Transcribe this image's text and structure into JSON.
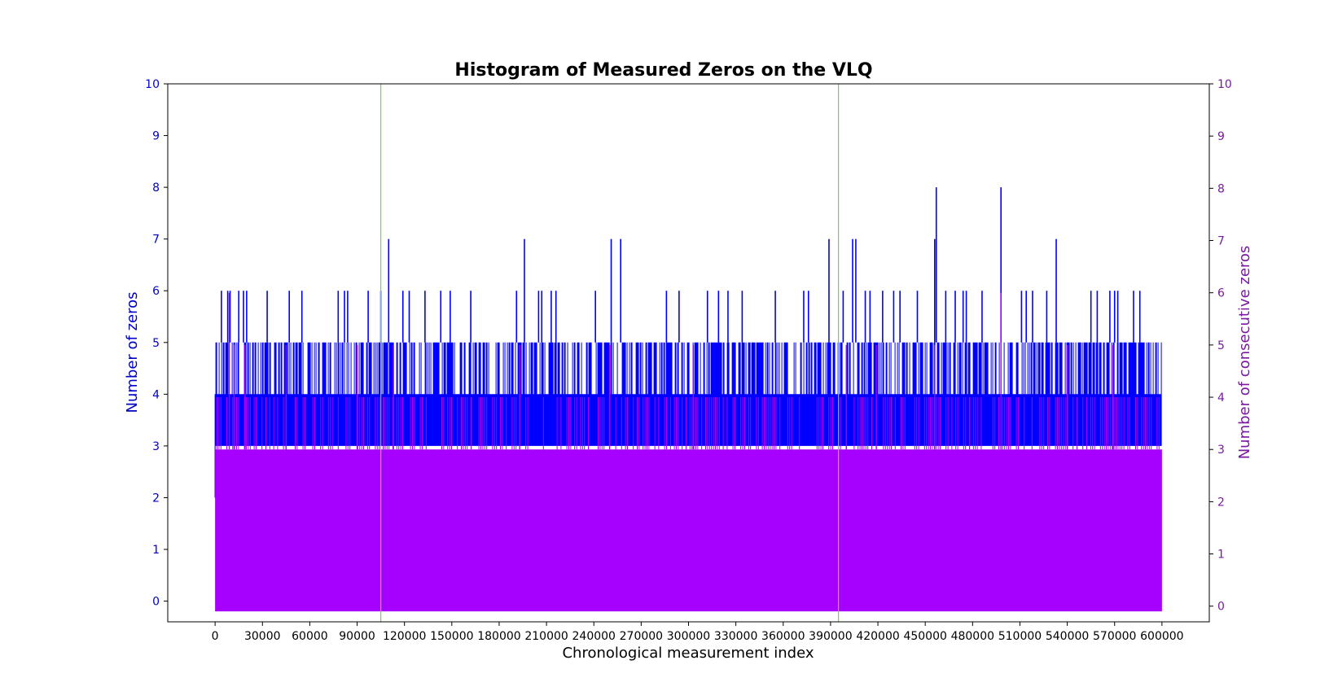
{
  "chart_data": {
    "type": "line",
    "title": "Histogram of Measured Zeros on the VLQ",
    "xlabel": "Chronological measurement index",
    "ylabel_left": "Number of zeros",
    "ylabel_right": "Number of consecutive zeros",
    "xlim": [
      -30000,
      630000
    ],
    "x_ticks": [
      0,
      30000,
      60000,
      90000,
      120000,
      150000,
      180000,
      210000,
      240000,
      270000,
      300000,
      330000,
      360000,
      390000,
      420000,
      450000,
      480000,
      510000,
      540000,
      570000,
      600000
    ],
    "ylim_left": [
      -0.4,
      10
    ],
    "y_ticks_left": [
      0,
      1,
      2,
      3,
      4,
      5,
      6,
      7,
      8,
      9,
      10
    ],
    "ylim_right": [
      -0.3,
      10
    ],
    "y_ticks_right": [
      0,
      1,
      2,
      3,
      4,
      5,
      6,
      7,
      8,
      9,
      10
    ],
    "grid": false,
    "vertical_lines": [
      {
        "x": 105000,
        "color": "#66dd44"
      },
      {
        "x": 395000,
        "color": "#66dd44"
      }
    ],
    "series": [
      {
        "axis": "left",
        "color": "#0000ff",
        "x_range": [
          0,
          600000
        ],
        "baseline_range": [
          3,
          5
        ],
        "peaks": [
          {
            "x": 4000,
            "y": 6
          },
          {
            "x": 8000,
            "y": 6
          },
          {
            "x": 9500,
            "y": 6
          },
          {
            "x": 15000,
            "y": 6
          },
          {
            "x": 18000,
            "y": 6
          },
          {
            "x": 20000,
            "y": 6
          },
          {
            "x": 33000,
            "y": 6
          },
          {
            "x": 47000,
            "y": 6
          },
          {
            "x": 55000,
            "y": 6
          },
          {
            "x": 78000,
            "y": 6
          },
          {
            "x": 82000,
            "y": 6
          },
          {
            "x": 84000,
            "y": 6
          },
          {
            "x": 97000,
            "y": 6
          },
          {
            "x": 105000,
            "y": 6
          },
          {
            "x": 110000,
            "y": 7
          },
          {
            "x": 119000,
            "y": 6
          },
          {
            "x": 123000,
            "y": 6
          },
          {
            "x": 133000,
            "y": 6
          },
          {
            "x": 143000,
            "y": 6
          },
          {
            "x": 149000,
            "y": 6
          },
          {
            "x": 162000,
            "y": 6
          },
          {
            "x": 191000,
            "y": 6
          },
          {
            "x": 196000,
            "y": 7
          },
          {
            "x": 205000,
            "y": 6
          },
          {
            "x": 207000,
            "y": 6
          },
          {
            "x": 213000,
            "y": 6
          },
          {
            "x": 216000,
            "y": 6
          },
          {
            "x": 241000,
            "y": 6
          },
          {
            "x": 251000,
            "y": 7
          },
          {
            "x": 257000,
            "y": 7
          },
          {
            "x": 286000,
            "y": 6
          },
          {
            "x": 294000,
            "y": 6
          },
          {
            "x": 312000,
            "y": 6
          },
          {
            "x": 319000,
            "y": 6
          },
          {
            "x": 325000,
            "y": 6
          },
          {
            "x": 334000,
            "y": 6
          },
          {
            "x": 355000,
            "y": 6
          },
          {
            "x": 373000,
            "y": 6
          },
          {
            "x": 376000,
            "y": 6
          },
          {
            "x": 389000,
            "y": 7
          },
          {
            "x": 398000,
            "y": 6
          },
          {
            "x": 404000,
            "y": 7
          },
          {
            "x": 406000,
            "y": 7
          },
          {
            "x": 412000,
            "y": 6
          },
          {
            "x": 415000,
            "y": 6
          },
          {
            "x": 423000,
            "y": 6
          },
          {
            "x": 430000,
            "y": 6
          },
          {
            "x": 434000,
            "y": 6
          },
          {
            "x": 445000,
            "y": 6
          },
          {
            "x": 456000,
            "y": 7
          },
          {
            "x": 457000,
            "y": 8
          },
          {
            "x": 463000,
            "y": 6
          },
          {
            "x": 469000,
            "y": 6
          },
          {
            "x": 474000,
            "y": 6
          },
          {
            "x": 476000,
            "y": 6
          },
          {
            "x": 486000,
            "y": 6
          },
          {
            "x": 498000,
            "y": 8
          },
          {
            "x": 511000,
            "y": 6
          },
          {
            "x": 514000,
            "y": 6
          },
          {
            "x": 518000,
            "y": 6
          },
          {
            "x": 527000,
            "y": 6
          },
          {
            "x": 533000,
            "y": 7
          },
          {
            "x": 555000,
            "y": 6
          },
          {
            "x": 559000,
            "y": 6
          },
          {
            "x": 567000,
            "y": 6
          },
          {
            "x": 570000,
            "y": 6
          },
          {
            "x": 572000,
            "y": 6
          },
          {
            "x": 582000,
            "y": 6
          },
          {
            "x": 586000,
            "y": 6
          }
        ]
      },
      {
        "axis": "right",
        "color": "#a600ff",
        "x_range": [
          0,
          600000
        ],
        "fill_range": [
          0,
          3
        ],
        "frequent_value": 4,
        "peaks": [
          {
            "x": 9000,
            "y": 6
          },
          {
            "x": 12000,
            "y": 5
          },
          {
            "x": 19000,
            "y": 5
          },
          {
            "x": 45000,
            "y": 5
          },
          {
            "x": 90000,
            "y": 5
          },
          {
            "x": 113000,
            "y": 5
          },
          {
            "x": 193000,
            "y": 5
          },
          {
            "x": 250000,
            "y": 5
          },
          {
            "x": 303000,
            "y": 5
          },
          {
            "x": 400000,
            "y": 5
          },
          {
            "x": 419000,
            "y": 5
          },
          {
            "x": 456000,
            "y": 5
          },
          {
            "x": 498000,
            "y": 6
          },
          {
            "x": 540000,
            "y": 5
          },
          {
            "x": 569000,
            "y": 5
          }
        ]
      }
    ]
  }
}
